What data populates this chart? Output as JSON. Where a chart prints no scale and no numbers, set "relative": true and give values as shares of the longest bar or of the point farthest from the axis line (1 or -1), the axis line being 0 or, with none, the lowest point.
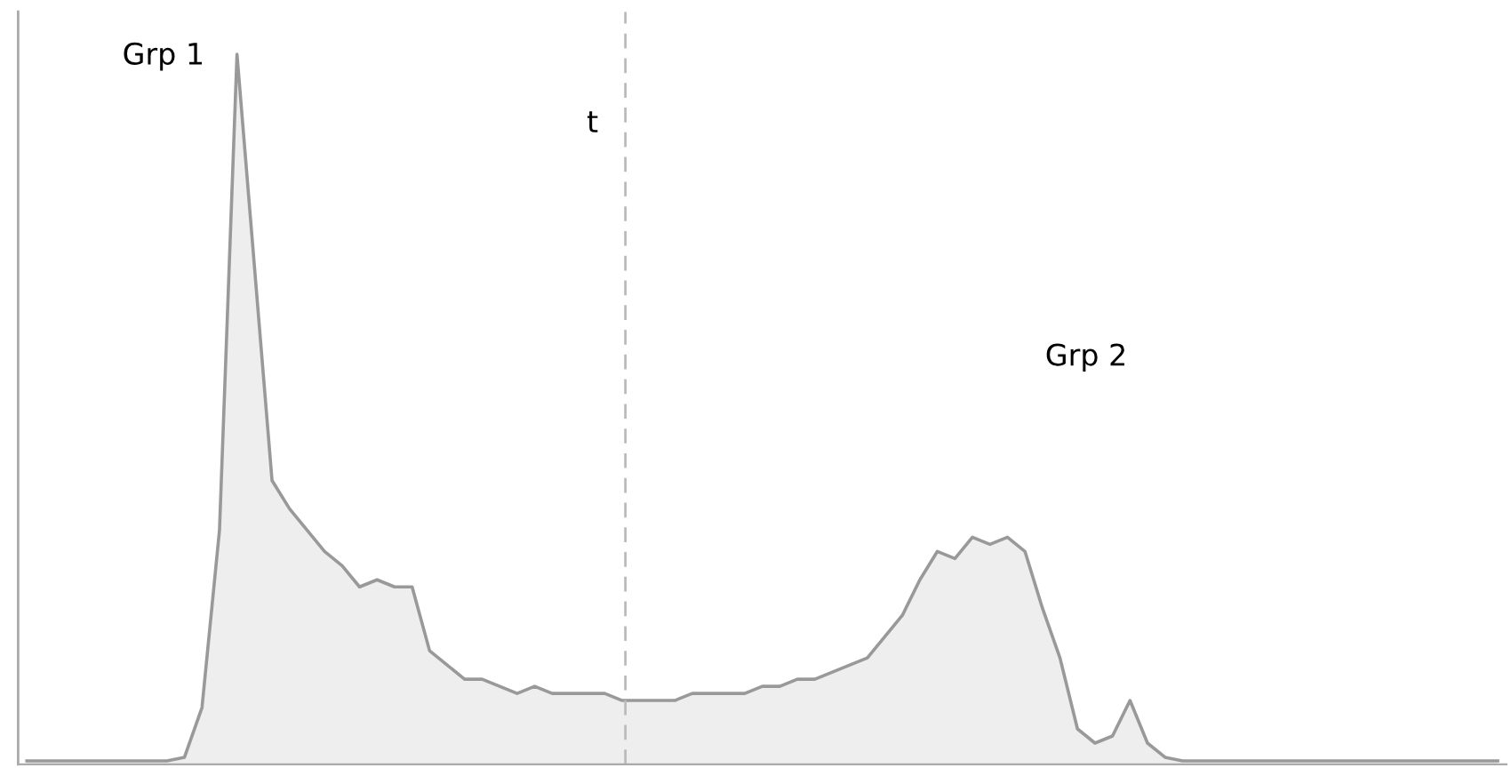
{
  "chart_data": {
    "type": "area",
    "relative": true,
    "categories": [
      null,
      null,
      null,
      null,
      null,
      null,
      null,
      null,
      null,
      null,
      null,
      null,
      null,
      null,
      null,
      null,
      null,
      null,
      null,
      null,
      null,
      null,
      null,
      null,
      null,
      null,
      null,
      null,
      null,
      null,
      null,
      null,
      null,
      null,
      null,
      null,
      null,
      null,
      null,
      null,
      null,
      null,
      null,
      null,
      null,
      null,
      null,
      null,
      null,
      null,
      null,
      null,
      null,
      null,
      null,
      null,
      null,
      null,
      null,
      null,
      null,
      null,
      null,
      null,
      null,
      null,
      null,
      null,
      null,
      null,
      null,
      null,
      null,
      null,
      null,
      null,
      null,
      null,
      null,
      null,
      null,
      null,
      null,
      null,
      null
    ],
    "series": [
      {
        "color": "#999999",
        "values": [
          0.005,
          0.005,
          0.005,
          0.005,
          0.005,
          0.005,
          0.005,
          0.005,
          0.005,
          0.01,
          0.08,
          0.33,
          1.0,
          0.7,
          0.4,
          0.36,
          0.33,
          0.3,
          0.28,
          0.25,
          0.26,
          0.25,
          0.25,
          0.16,
          0.14,
          0.12,
          0.12,
          0.11,
          0.1,
          0.11,
          0.1,
          0.1,
          0.1,
          0.1,
          0.09,
          0.09,
          0.09,
          0.09,
          0.1,
          0.1,
          0.1,
          0.1,
          0.11,
          0.11,
          0.12,
          0.12,
          0.13,
          0.14,
          0.15,
          0.18,
          0.21,
          0.26,
          0.3,
          0.29,
          0.32,
          0.31,
          0.32,
          0.3,
          0.22,
          0.15,
          0.05,
          0.03,
          0.04,
          0.09,
          0.03,
          0.01,
          0.005,
          0.005,
          0.005,
          0.005,
          0.005,
          0.005,
          0.005,
          0.005,
          0.005,
          0.005,
          0.005,
          0.005,
          0.005,
          0.005,
          0.005,
          0.005,
          0.005,
          0.005,
          0.005
        ]
      }
    ],
    "annotations": [
      "Grp 1",
      "t",
      "Grp 2"
    ]
  }
}
